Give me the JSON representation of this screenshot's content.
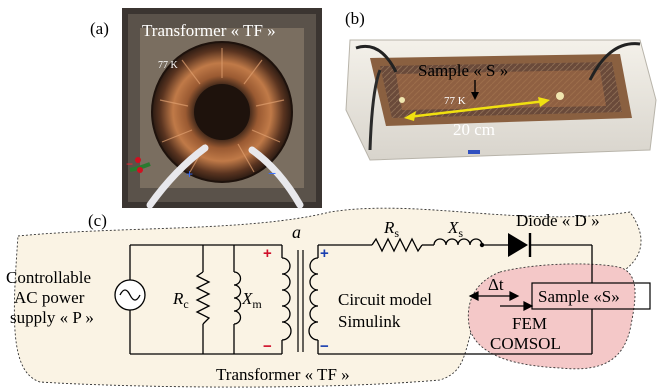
{
  "panels": {
    "a": {
      "label": "(a)",
      "title": "Transformer « TF »",
      "temperature": "77 K"
    },
    "b": {
      "label": "(b)",
      "title": "Sample « S »",
      "temperature": "77 K",
      "length": "20 cm"
    },
    "c": {
      "label": "(c)",
      "source_label_1": "Controllable",
      "source_label_2": "AC power",
      "source_label_3": "supply « P »",
      "rc": "R",
      "rc_sub": "c",
      "xm": "X",
      "xm_sub": "m",
      "turns_ratio": "a",
      "rs": "R",
      "rs_sub": "s",
      "xs": "X",
      "xs_sub": "s",
      "diode": "Diode « D »",
      "sample": "Sample «S»",
      "delta_t": "Δt",
      "circuit_model_1": "Circuit model",
      "circuit_model_2": "Simulink",
      "fem_1": "FEM",
      "fem_2": "COMSOL",
      "transformer": "Transformer « TF »",
      "plus": "+",
      "minus": "−"
    }
  },
  "colors": {
    "simulink_region": "#faf3e4",
    "fem_region": "#f4c8c8",
    "polarity_primary": "#d0102a",
    "polarity_secondary": "#1a3fb0",
    "length_arrow": "#f0e010"
  }
}
